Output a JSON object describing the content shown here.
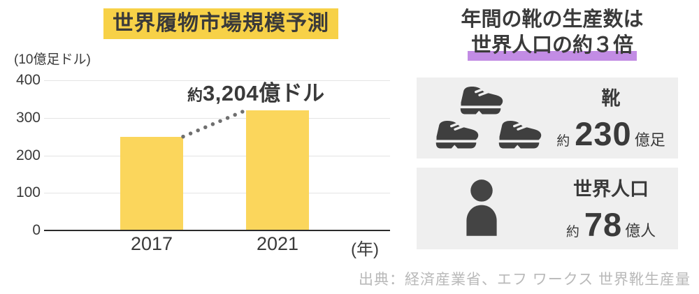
{
  "chart_data": {
    "type": "bar",
    "title": "世界履物市場規模予測",
    "unit_label": "(10億足ドル)",
    "categories": [
      "2017",
      "2021"
    ],
    "values": [
      250,
      320.4
    ],
    "yticks": [
      400,
      300,
      200,
      100,
      0
    ],
    "ylim": [
      0,
      400
    ],
    "grid": true,
    "bar_color": "#FBD65C",
    "annotation_prefix": "約",
    "annotation_value": "3,204億ドル",
    "annotation_target": "2021",
    "xaxis_suffix": "(年)",
    "dotted_connector": "from 2017 bar top to 2021 bar top"
  },
  "right_panel": {
    "heading_line1": "年間の靴の生産数は",
    "heading_line2": "世界人口の約３倍",
    "cards": [
      {
        "icon": "boots-icon",
        "label": "靴",
        "approx": "約",
        "value": "230",
        "unit": "億足"
      },
      {
        "icon": "person-icon",
        "label": "世界人口",
        "approx": "約",
        "value": "78",
        "unit": "億人"
      }
    ]
  },
  "source": {
    "text": "出典：経済産業省、エフ ワークス 世界靴生産量"
  },
  "colors": {
    "title_highlight": "#F7D147",
    "bar_yellow": "#FBD65C",
    "purple_highlight": "#C28CE4",
    "icon_gray": "#3f3f3f",
    "card_bg": "#efefef",
    "source_gray": "#b9b9b9",
    "dot_gray": "#6f6f6f",
    "text_dark": "#3a3a3a"
  }
}
